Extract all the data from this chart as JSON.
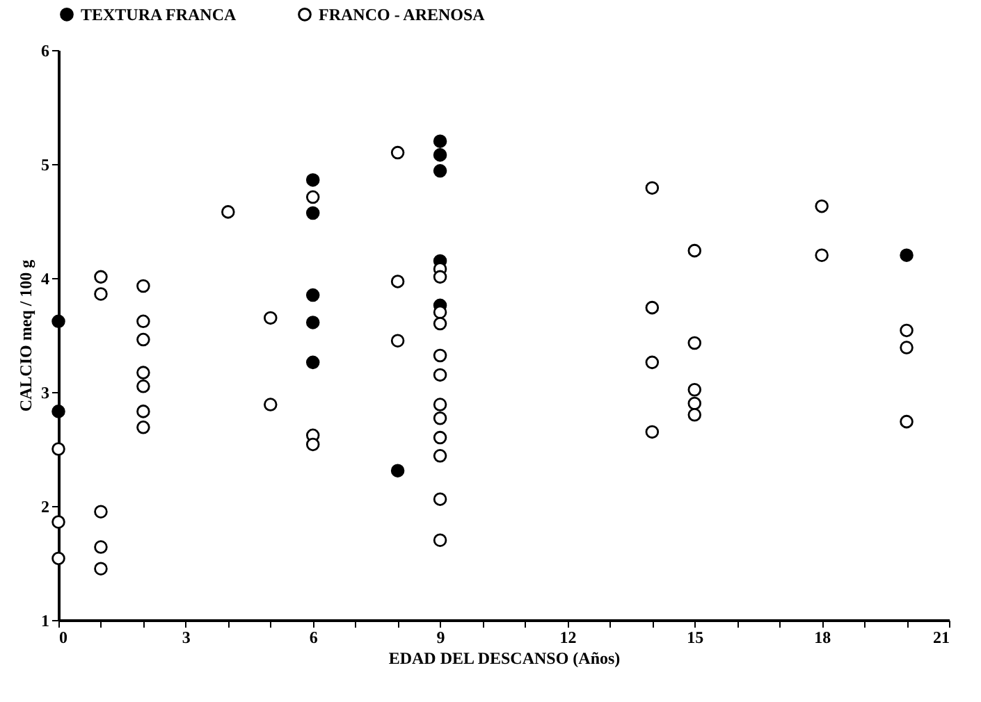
{
  "chart_data": {
    "type": "scatter",
    "xlabel": "EDAD DEL DESCANSO (Años)",
    "ylabel": "CALCIO meq / 100 g",
    "xlim": [
      0,
      21
    ],
    "ylim": [
      1,
      6
    ],
    "xticks": [
      0,
      {
        "value": 1,
        "label": null
      },
      {
        "value": 2,
        "label": null
      },
      3,
      {
        "value": 4,
        "label": null
      },
      {
        "value": 5,
        "label": null
      },
      6,
      {
        "value": 7,
        "label": null
      },
      {
        "value": 8,
        "label": null
      },
      9,
      {
        "value": 10,
        "label": null
      },
      {
        "value": 11,
        "label": null
      },
      12,
      {
        "value": 13,
        "label": null
      },
      {
        "value": 14,
        "label": null
      },
      15,
      {
        "value": 16,
        "label": null
      },
      {
        "value": 17,
        "label": null
      },
      18,
      {
        "value": 19,
        "label": null
      },
      {
        "value": 20,
        "label": null
      },
      21
    ],
    "yticks": [
      1,
      2,
      3,
      4,
      5,
      6
    ],
    "grid": false,
    "legend": "top",
    "marker": "circle",
    "series": [
      {
        "name": "TEXTURA FRANCA",
        "color": "#000000",
        "x": [
          0,
          0,
          6,
          6,
          6,
          6,
          6,
          8,
          9,
          9,
          9,
          9,
          9,
          20
        ],
        "values": [
          3.62,
          2.83,
          4.86,
          4.57,
          3.85,
          3.61,
          3.26,
          2.31,
          5.2,
          5.08,
          4.94,
          4.15,
          3.76,
          4.2
        ]
      },
      {
        "name": "FRANCO - ARENOSA",
        "color": "#ffffff",
        "x": [
          0,
          0,
          0,
          1,
          1,
          1,
          1,
          1,
          2,
          2,
          2,
          2,
          2,
          2,
          2,
          4,
          5,
          5,
          6,
          6,
          6,
          8,
          8,
          8,
          9,
          9,
          9,
          9,
          9,
          9,
          9,
          9,
          9,
          9,
          9,
          9,
          14,
          14,
          14,
          14,
          15,
          15,
          15,
          15,
          15,
          18,
          18,
          20,
          20,
          20
        ],
        "values": [
          2.5,
          1.86,
          1.54,
          4.01,
          3.86,
          1.95,
          1.64,
          1.45,
          3.93,
          3.62,
          3.46,
          3.17,
          3.05,
          2.83,
          2.69,
          4.58,
          3.65,
          2.89,
          4.71,
          2.62,
          2.54,
          5.1,
          3.97,
          3.45,
          4.08,
          4.01,
          3.7,
          3.6,
          3.32,
          3.15,
          2.89,
          2.77,
          2.6,
          2.44,
          2.06,
          1.7,
          4.79,
          3.74,
          3.26,
          2.65,
          4.24,
          3.43,
          3.02,
          2.9,
          2.8,
          4.63,
          4.2,
          3.54,
          3.39,
          2.74
        ]
      }
    ]
  }
}
